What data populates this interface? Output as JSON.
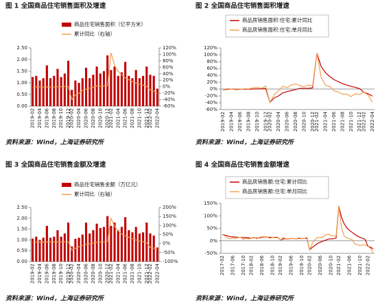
{
  "chart_data": [
    {
      "type": "bar",
      "title": "图 1 全国商品住宅销售面积及增速",
      "source": "资料来源：Wind，上海证券研究所",
      "categories": [
        "2019-02",
        null,
        "2019-04",
        null,
        "2019-06",
        null,
        "2019-08",
        null,
        "2019-10",
        null,
        "2019-12",
        "2020-02",
        null,
        "2020-04",
        null,
        "2020-06",
        null,
        "2020-08",
        null,
        "2020-10",
        null,
        "2020-12",
        "2021-02",
        null,
        "2021-04",
        null,
        "2021-06",
        null,
        "2021-08",
        null,
        "2021-10",
        null,
        "2021-12",
        "2022-02",
        null,
        "2022-04"
      ],
      "series": [
        {
          "name": "商品住宅销售面积（亿平方米）",
          "type": "bar",
          "color": "#c00000",
          "values": [
            1.25,
            1.3,
            1.1,
            1.2,
            1.75,
            1.2,
            1.3,
            1.6,
            1.25,
            1.4,
            1.95,
            0.7,
            1.1,
            1.0,
            1.2,
            1.65,
            1.2,
            1.35,
            1.7,
            1.4,
            1.5,
            2.18,
            1.55,
            1.7,
            1.3,
            1.45,
            1.9,
            1.3,
            1.2,
            1.55,
            1.2,
            1.3,
            1.7,
            1.35,
            1.3,
            0.75
          ]
        },
        {
          "name": "累计同比（右轴）",
          "type": "line",
          "axis": "y2",
          "color": "#f0a050",
          "values": [
            -3.2,
            -0.6,
            -0.3,
            -0.9,
            -1.0,
            -0.8,
            -0.6,
            -0.1,
            0.3,
            0.5,
            1.5,
            -39.2,
            -25.9,
            -20.3,
            -11.3,
            -7.6,
            -4.5,
            -1.6,
            1.9,
            1.9,
            2.0,
            3.2,
            104.9,
            65.3,
            48.1,
            36.5,
            27.5,
            21.5,
            15.9,
            11.3,
            7.9,
            4.9,
            1.1,
            -9.6,
            -13.8,
            -20.9
          ]
        }
      ],
      "ylim": [
        0,
        2.5
      ],
      "yticks": [
        {
          "value": 0,
          "label": "0.00"
        },
        {
          "value": 0.5,
          "label": "0.50"
        },
        {
          "value": 1,
          "label": "1.00"
        },
        {
          "value": 1.5,
          "label": "1.50"
        },
        {
          "value": 2,
          "label": "2.00"
        },
        {
          "value": 2.5,
          "label": "2.50"
        }
      ],
      "y2lim": [
        -60,
        120
      ],
      "y2ticks": [
        {
          "value": -60,
          "label": "-60%"
        },
        {
          "value": -40,
          "label": "-40%"
        },
        {
          "value": -20,
          "label": "-20%"
        },
        {
          "value": 0,
          "label": "0%"
        },
        {
          "value": 20,
          "label": "20%"
        },
        {
          "value": 40,
          "label": "40%"
        },
        {
          "value": 60,
          "label": "60%"
        },
        {
          "value": 80,
          "label": "80%"
        },
        {
          "value": 100,
          "label": "100%"
        },
        {
          "value": 120,
          "label": "120%"
        }
      ]
    },
    {
      "type": "line",
      "title": "图 2 全国商品住宅销售面积增速",
      "source": "资料来源：Wind，上海证券研究所",
      "categories": [
        "2019-02",
        null,
        "2019-04",
        null,
        "2019-06",
        null,
        "2019-08",
        null,
        "2019-10",
        null,
        "2019-12",
        "2020-02",
        null,
        "2020-04",
        null,
        "2020-06",
        null,
        "2020-08",
        null,
        "2020-10",
        null,
        "2020-12",
        "2021-02",
        null,
        "2021-04",
        null,
        "2021-06",
        null,
        "2021-08",
        null,
        "2021-10",
        null,
        "2021-12",
        "2022-02",
        null,
        "2022-04"
      ],
      "series": [
        {
          "name": "商品房销售面积:住宅:累计同比",
          "color": "#c00000",
          "values": [
            -3.2,
            -0.6,
            -0.3,
            -0.9,
            -1.0,
            -0.8,
            -0.6,
            -0.1,
            0.3,
            0.5,
            1.5,
            -39.2,
            -25.9,
            -20.3,
            -11.3,
            -7.6,
            -4.5,
            -1.6,
            1.9,
            1.9,
            2.0,
            3.2,
            104.9,
            65.3,
            48.1,
            36.5,
            27.5,
            21.5,
            15.9,
            11.3,
            7.9,
            4.9,
            1.1,
            -9.6,
            -13.8,
            -20.9
          ]
        },
        {
          "name": "商品房销售面积:住宅:单月同比",
          "color": "#f0a050",
          "values": [
            -3.2,
            1.3,
            -0.5,
            -2.2,
            -1.5,
            0.5,
            0.4,
            3.1,
            4.7,
            2.0,
            8.6,
            -39.2,
            -15.9,
            -5,
            8,
            4,
            12,
            15,
            10,
            6,
            12,
            9,
            104.9,
            34,
            11,
            8,
            -5,
            -9,
            -15,
            -15,
            -22,
            -14,
            -16,
            -9.6,
            -17.7,
            -39
          ]
        }
      ],
      "ylim": [
        -60,
        120
      ],
      "yticks": [
        {
          "value": -60,
          "label": "-60%"
        },
        {
          "value": -40,
          "label": "-40%"
        },
        {
          "value": -20,
          "label": "-20%"
        },
        {
          "value": 0,
          "label": "0%"
        },
        {
          "value": 20,
          "label": "20%"
        },
        {
          "value": 40,
          "label": "40%"
        },
        {
          "value": 60,
          "label": "60%"
        },
        {
          "value": 80,
          "label": "80%"
        },
        {
          "value": 100,
          "label": "100%"
        },
        {
          "value": 120,
          "label": "120%"
        }
      ]
    },
    {
      "type": "bar",
      "title": "图 3 全国商品住宅销售金额及增速",
      "source": "资料来源：Wind，上海证券研究所",
      "categories": [
        "2019-02",
        null,
        "2019-04",
        null,
        "2019-06",
        null,
        "2019-08",
        null,
        "2019-10",
        null,
        "2019-12",
        "2020-02",
        null,
        "2020-04",
        null,
        "2020-06",
        null,
        "2020-08",
        null,
        "2020-10",
        null,
        "2020-12",
        "2021-02",
        null,
        "2021-04",
        null,
        "2021-06",
        null,
        "2021-08",
        null,
        "2021-10",
        null,
        "2021-12",
        "2022-02",
        null,
        "2022-04"
      ],
      "series": [
        {
          "name": "商品住宅销售金额（万亿元）",
          "type": "bar",
          "color": "#c00000",
          "values": [
            1.06,
            1.15,
            1.0,
            1.1,
            1.65,
            1.1,
            1.15,
            1.45,
            1.15,
            1.3,
            1.8,
            0.7,
            1.05,
            1.1,
            1.25,
            1.8,
            1.3,
            1.45,
            1.75,
            1.55,
            1.6,
            2.1,
            1.65,
            1.8,
            1.45,
            1.6,
            2.05,
            1.45,
            1.35,
            1.6,
            1.3,
            1.35,
            1.8,
            1.3,
            1.2,
            0.65
          ]
        },
        {
          "name": "累计同比（右轴）",
          "type": "line",
          "axis": "y2",
          "color": "#f0a050",
          "values": [
            2.8,
            7.8,
            8.2,
            8.3,
            8.7,
            8.7,
            8.3,
            9.5,
            9.3,
            9.2,
            10.3,
            -35.9,
            -26.1,
            -18.6,
            -10.6,
            -5.3,
            -1.2,
            2.6,
            7.1,
            7.9,
            8.1,
            10.8,
            139.6,
            95.5,
            69.4,
            52.4,
            41.9,
            34.4,
            26.3,
            19.3,
            14.1,
            10.2,
            5.3,
            -22.1,
            -25.6,
            -32.1
          ]
        }
      ],
      "ylim": [
        0,
        2.5
      ],
      "yticks": [
        {
          "value": 0,
          "label": "0.00"
        },
        {
          "value": 0.5,
          "label": "0.50"
        },
        {
          "value": 1,
          "label": "1.00"
        },
        {
          "value": 1.5,
          "label": "1.50"
        },
        {
          "value": 2,
          "label": "2.00"
        },
        {
          "value": 2.5,
          "label": "2.50"
        }
      ],
      "y2lim": [
        -100,
        200
      ],
      "y2ticks": [
        {
          "value": -100,
          "label": "-100%"
        },
        {
          "value": -50,
          "label": "-50%"
        },
        {
          "value": 0,
          "label": "0%"
        },
        {
          "value": 50,
          "label": "50%"
        },
        {
          "value": 100,
          "label": "100%"
        },
        {
          "value": 150,
          "label": "150%"
        },
        {
          "value": 200,
          "label": "200%"
        }
      ]
    },
    {
      "type": "line",
      "title": "图 4 全国商品住宅销售金额增速",
      "source": "资料来源：Wind，上海证券研究所",
      "categories": [
        "2017-02",
        null,
        null,
        null,
        "2017-06",
        null,
        null,
        null,
        "2017-10",
        null,
        null,
        "2018-02",
        null,
        null,
        null,
        "2018-06",
        null,
        null,
        null,
        "2018-10",
        null,
        null,
        "2019-02",
        null,
        null,
        null,
        "2019-06",
        null,
        null,
        null,
        "2019-10",
        null,
        null,
        "2020-02",
        null,
        null,
        null,
        "2020-06",
        null,
        null,
        null,
        "2020-10",
        null,
        null,
        "2021-02",
        null,
        null,
        null,
        "2021-06",
        null,
        null,
        null,
        "2021-10",
        null,
        null,
        "2022-02",
        null,
        null
      ],
      "series": [
        {
          "name": "商品房销售额:住宅:累计同比",
          "color": "#c00000",
          "values": [
            25,
            23,
            20,
            17,
            16,
            15,
            14,
            14,
            13,
            13,
            12,
            10,
            13,
            11,
            12,
            14,
            15,
            15,
            14,
            14,
            14,
            14,
            2.8,
            7.8,
            8.2,
            8.3,
            8.7,
            8.7,
            8.3,
            9.5,
            9.3,
            9.2,
            10.3,
            -35.9,
            -26.1,
            -18.6,
            -10.6,
            -5.3,
            -1.2,
            2.6,
            7.1,
            7.9,
            8.1,
            10.8,
            139.6,
            95.5,
            69.4,
            52.4,
            41.9,
            34.4,
            26.3,
            19.3,
            14.1,
            10.2,
            5.3,
            -22.1,
            -25.6,
            -32.1
          ]
        },
        {
          "name": "商品房销售额:住宅:单月同比",
          "color": "#f0a050",
          "values": [
            25,
            20,
            12,
            8,
            13,
            8,
            13,
            15,
            5,
            10,
            8,
            10,
            15,
            8,
            14,
            16,
            16,
            16,
            10,
            14,
            12,
            13,
            2.8,
            13,
            9,
            8,
            10,
            9,
            8,
            12,
            8,
            9,
            14,
            -35.9,
            -11,
            5,
            14,
            13,
            15,
            24,
            27,
            22,
            19,
            20,
            139.6,
            55,
            20,
            12,
            8,
            5,
            -12,
            -15,
            -19,
            -16,
            -17,
            -22.1,
            -30,
            -47
          ]
        }
      ],
      "ylim": [
        -50,
        150
      ],
      "yticks": [
        {
          "value": -50,
          "label": "-50%"
        },
        {
          "value": 0,
          "label": "0%"
        },
        {
          "value": 50,
          "label": "50%"
        },
        {
          "value": 100,
          "label": "100%"
        },
        {
          "value": 150,
          "label": "150%"
        }
      ]
    }
  ]
}
